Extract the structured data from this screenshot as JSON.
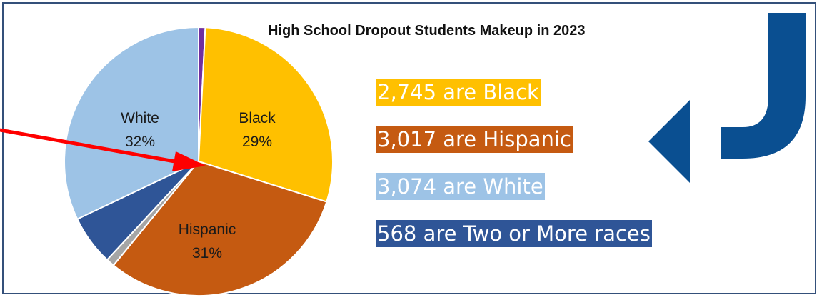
{
  "chart_data": {
    "type": "pie",
    "title": "High School Dropout Students Makeup in 2023",
    "start_angle_deg": -90,
    "slices": [
      {
        "name": "Other",
        "value": 0.8,
        "color": "#7030a0"
      },
      {
        "name": "Black",
        "value": 29,
        "color": "#ffc000",
        "label": "Black",
        "pct_label": "29%"
      },
      {
        "name": "Hispanic",
        "value": 31,
        "color": "#c55a11",
        "label": "Hispanic",
        "pct_label": "31%"
      },
      {
        "name": "Other 2",
        "value": 1,
        "color": "#a5a5a5"
      },
      {
        "name": "Two or More races",
        "value": 6,
        "color": "#2f5597"
      },
      {
        "name": "White",
        "value": 32,
        "color": "#9dc3e6",
        "label": "White",
        "pct_label": "32%"
      }
    ]
  },
  "stats": {
    "black": {
      "text": "2,745 are Black",
      "color": "#ffc000"
    },
    "hispanic": {
      "text": "3,017 are Hispanic",
      "color": "#c55a11"
    },
    "white": {
      "text": "3,074 are White",
      "color": "#9dc3e6"
    },
    "two": {
      "text": "568 are Two or More races",
      "color": "#2f5597"
    }
  },
  "colors": {
    "frame": "#34507a",
    "arrow": "#ff0000",
    "curved_arrow": "#0a4f91"
  }
}
